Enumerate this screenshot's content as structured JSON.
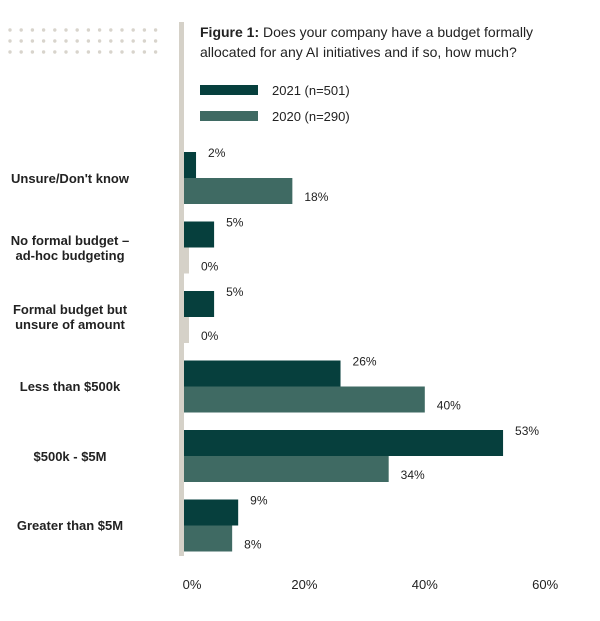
{
  "title_lead": "Figure 1:",
  "title_rest": " Does your company have a budget formally allocated for any AI initiatives and if so, how much?",
  "colors": {
    "series_2021": "#063f3d",
    "series_2020": "#3f6a63",
    "axis_bar": "#d5d1c8",
    "dots": "#d8d4cc"
  },
  "legend": [
    {
      "label": "2021 (n=501)",
      "color": "#063f3d"
    },
    {
      "label": "2020 (n=290)",
      "color": "#3f6a63"
    }
  ],
  "chart_data": {
    "type": "bar",
    "orientation": "horizontal",
    "title": "Figure 1: Does your company have a budget formally allocated for any AI initiatives and if so, how much?",
    "categories": [
      "Unsure/Don't know",
      "No formal budget –\nad-hoc budgeting",
      "Formal budget but\nunsure of amount",
      "Less than $500k",
      "$500k - $5M",
      "Greater than $5M"
    ],
    "series": [
      {
        "name": "2021 (n=501)",
        "values": [
          2,
          5,
          5,
          26,
          53,
          9
        ],
        "labels": [
          "2%",
          "5%",
          "5%",
          "26%",
          "53%",
          "9%"
        ]
      },
      {
        "name": "2020 (n=290)",
        "values": [
          18,
          0,
          0,
          40,
          34,
          8
        ],
        "labels": [
          "18%",
          "0%",
          "0%",
          "40%",
          "34%",
          "8%"
        ]
      }
    ],
    "xlim": [
      0,
      60
    ],
    "x_ticks": [
      "0%",
      "20%",
      "40%",
      "60%"
    ],
    "legend_position": "top",
    "grid": false
  }
}
